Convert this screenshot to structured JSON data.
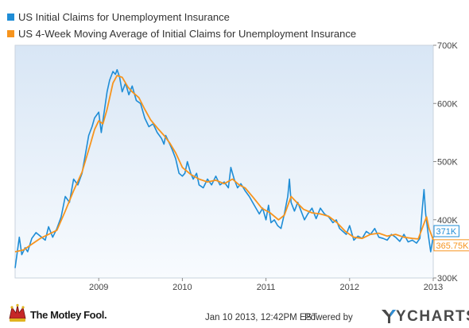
{
  "footer": {
    "brand": "The Motley Fool.",
    "timestamp": "Jan 10 2013, 12:42PM EST.",
    "powered_by": "Powered by",
    "provider": "YCHARTS"
  },
  "chart_data": {
    "type": "line",
    "legend": [
      {
        "label": "US Initial Claims for Unemployment Insurance",
        "color": "#1f8dd6"
      },
      {
        "label": "US 4-Week Moving Average of Initial Claims for Unemployment Insurance",
        "color": "#f7941d"
      }
    ],
    "xlim": [
      2008.0,
      2013.0
    ],
    "ylim": [
      300000,
      700000
    ],
    "x_ticks": [
      {
        "value": 2009,
        "label": "2009"
      },
      {
        "value": 2010,
        "label": "2010"
      },
      {
        "value": 2011,
        "label": "2011"
      },
      {
        "value": 2012,
        "label": "2012"
      },
      {
        "value": 2013,
        "label": "2013"
      }
    ],
    "y_ticks": [
      {
        "value": 300000,
        "label": "300K"
      },
      {
        "value": 400000,
        "label": "400K"
      },
      {
        "value": 500000,
        "label": "500K"
      },
      {
        "value": 600000,
        "label": "600K"
      },
      {
        "value": 700000,
        "label": "700K"
      }
    ],
    "grid": false,
    "legend_position": "top-left",
    "end_labels": [
      {
        "series": 0,
        "label": "371K",
        "value": 371000
      },
      {
        "series": 1,
        "label": "365.75K",
        "value": 365750
      }
    ],
    "series": [
      {
        "name": "US Initial Claims for Unemployment Insurance",
        "color": "#1f8dd6",
        "points": [
          [
            2008.0,
            317000
          ],
          [
            2008.05,
            370000
          ],
          [
            2008.08,
            340000
          ],
          [
            2008.12,
            352000
          ],
          [
            2008.15,
            345000
          ],
          [
            2008.2,
            368000
          ],
          [
            2008.25,
            378000
          ],
          [
            2008.3,
            372000
          ],
          [
            2008.36,
            365000
          ],
          [
            2008.4,
            388000
          ],
          [
            2008.45,
            370000
          ],
          [
            2008.5,
            385000
          ],
          [
            2008.55,
            405000
          ],
          [
            2008.6,
            440000
          ],
          [
            2008.65,
            430000
          ],
          [
            2008.7,
            470000
          ],
          [
            2008.75,
            460000
          ],
          [
            2008.8,
            480000
          ],
          [
            2008.85,
            520000
          ],
          [
            2008.88,
            545000
          ],
          [
            2008.92,
            560000
          ],
          [
            2008.95,
            575000
          ],
          [
            2009.0,
            585000
          ],
          [
            2009.03,
            550000
          ],
          [
            2009.06,
            580000
          ],
          [
            2009.1,
            620000
          ],
          [
            2009.13,
            640000
          ],
          [
            2009.17,
            655000
          ],
          [
            2009.2,
            650000
          ],
          [
            2009.22,
            658000
          ],
          [
            2009.25,
            645000
          ],
          [
            2009.28,
            620000
          ],
          [
            2009.32,
            635000
          ],
          [
            2009.36,
            615000
          ],
          [
            2009.4,
            630000
          ],
          [
            2009.45,
            605000
          ],
          [
            2009.5,
            600000
          ],
          [
            2009.55,
            575000
          ],
          [
            2009.6,
            560000
          ],
          [
            2009.65,
            565000
          ],
          [
            2009.7,
            550000
          ],
          [
            2009.75,
            540000
          ],
          [
            2009.78,
            530000
          ],
          [
            2009.8,
            545000
          ],
          [
            2009.85,
            530000
          ],
          [
            2009.88,
            520000
          ],
          [
            2009.92,
            505000
          ],
          [
            2009.96,
            480000
          ],
          [
            2010.0,
            475000
          ],
          [
            2010.03,
            480000
          ],
          [
            2010.06,
            500000
          ],
          [
            2010.1,
            480000
          ],
          [
            2010.13,
            470000
          ],
          [
            2010.17,
            480000
          ],
          [
            2010.2,
            460000
          ],
          [
            2010.25,
            455000
          ],
          [
            2010.3,
            470000
          ],
          [
            2010.35,
            460000
          ],
          [
            2010.4,
            475000
          ],
          [
            2010.45,
            460000
          ],
          [
            2010.5,
            465000
          ],
          [
            2010.55,
            455000
          ],
          [
            2010.58,
            490000
          ],
          [
            2010.62,
            470000
          ],
          [
            2010.66,
            455000
          ],
          [
            2010.7,
            462000
          ],
          [
            2010.75,
            450000
          ],
          [
            2010.8,
            440000
          ],
          [
            2010.84,
            430000
          ],
          [
            2010.88,
            420000
          ],
          [
            2010.92,
            410000
          ],
          [
            2010.96,
            420000
          ],
          [
            2011.0,
            400000
          ],
          [
            2011.03,
            425000
          ],
          [
            2011.06,
            395000
          ],
          [
            2011.1,
            400000
          ],
          [
            2011.14,
            390000
          ],
          [
            2011.18,
            385000
          ],
          [
            2011.22,
            410000
          ],
          [
            2011.26,
            440000
          ],
          [
            2011.28,
            470000
          ],
          [
            2011.3,
            430000
          ],
          [
            2011.34,
            415000
          ],
          [
            2011.38,
            430000
          ],
          [
            2011.42,
            415000
          ],
          [
            2011.46,
            400000
          ],
          [
            2011.5,
            410000
          ],
          [
            2011.55,
            420000
          ],
          [
            2011.6,
            402000
          ],
          [
            2011.65,
            420000
          ],
          [
            2011.7,
            410000
          ],
          [
            2011.75,
            405000
          ],
          [
            2011.8,
            395000
          ],
          [
            2011.84,
            400000
          ],
          [
            2011.88,
            385000
          ],
          [
            2011.92,
            380000
          ],
          [
            2011.96,
            375000
          ],
          [
            2012.0,
            390000
          ],
          [
            2012.05,
            365000
          ],
          [
            2012.1,
            372000
          ],
          [
            2012.15,
            368000
          ],
          [
            2012.2,
            380000
          ],
          [
            2012.25,
            375000
          ],
          [
            2012.3,
            385000
          ],
          [
            2012.35,
            370000
          ],
          [
            2012.4,
            368000
          ],
          [
            2012.45,
            365000
          ],
          [
            2012.5,
            375000
          ],
          [
            2012.55,
            370000
          ],
          [
            2012.6,
            363000
          ],
          [
            2012.65,
            375000
          ],
          [
            2012.7,
            362000
          ],
          [
            2012.75,
            365000
          ],
          [
            2012.8,
            360000
          ],
          [
            2012.84,
            368000
          ],
          [
            2012.87,
            420000
          ],
          [
            2012.89,
            452000
          ],
          [
            2012.91,
            410000
          ],
          [
            2012.94,
            375000
          ],
          [
            2012.97,
            345000
          ],
          [
            2013.0,
            371000
          ]
        ]
      },
      {
        "name": "US 4-Week Moving Average of Initial Claims for Unemployment Insurance",
        "color": "#f7941d",
        "points": [
          [
            2008.0,
            345000
          ],
          [
            2008.1,
            348000
          ],
          [
            2008.2,
            358000
          ],
          [
            2008.3,
            368000
          ],
          [
            2008.4,
            375000
          ],
          [
            2008.5,
            382000
          ],
          [
            2008.6,
            415000
          ],
          [
            2008.7,
            450000
          ],
          [
            2008.8,
            482000
          ],
          [
            2008.9,
            530000
          ],
          [
            2008.95,
            555000
          ],
          [
            2009.0,
            570000
          ],
          [
            2009.05,
            565000
          ],
          [
            2009.1,
            590000
          ],
          [
            2009.17,
            635000
          ],
          [
            2009.22,
            648000
          ],
          [
            2009.28,
            645000
          ],
          [
            2009.35,
            628000
          ],
          [
            2009.4,
            620000
          ],
          [
            2009.48,
            610000
          ],
          [
            2009.55,
            590000
          ],
          [
            2009.62,
            572000
          ],
          [
            2009.7,
            558000
          ],
          [
            2009.78,
            545000
          ],
          [
            2009.85,
            532000
          ],
          [
            2009.92,
            515000
          ],
          [
            2010.0,
            490000
          ],
          [
            2010.1,
            478000
          ],
          [
            2010.2,
            470000
          ],
          [
            2010.3,
            465000
          ],
          [
            2010.4,
            468000
          ],
          [
            2010.5,
            462000
          ],
          [
            2010.6,
            470000
          ],
          [
            2010.68,
            460000
          ],
          [
            2010.75,
            455000
          ],
          [
            2010.85,
            438000
          ],
          [
            2010.95,
            420000
          ],
          [
            2011.05,
            412000
          ],
          [
            2011.15,
            400000
          ],
          [
            2011.22,
            408000
          ],
          [
            2011.3,
            440000
          ],
          [
            2011.38,
            428000
          ],
          [
            2011.45,
            418000
          ],
          [
            2011.55,
            412000
          ],
          [
            2011.65,
            410000
          ],
          [
            2011.75,
            406000
          ],
          [
            2011.85,
            395000
          ],
          [
            2011.95,
            380000
          ],
          [
            2012.05,
            370000
          ],
          [
            2012.15,
            368000
          ],
          [
            2012.25,
            375000
          ],
          [
            2012.35,
            377000
          ],
          [
            2012.45,
            372000
          ],
          [
            2012.55,
            375000
          ],
          [
            2012.65,
            370000
          ],
          [
            2012.75,
            368000
          ],
          [
            2012.82,
            367000
          ],
          [
            2012.88,
            390000
          ],
          [
            2012.92,
            405000
          ],
          [
            2012.95,
            385000
          ],
          [
            2013.0,
            365750
          ]
        ]
      }
    ]
  }
}
